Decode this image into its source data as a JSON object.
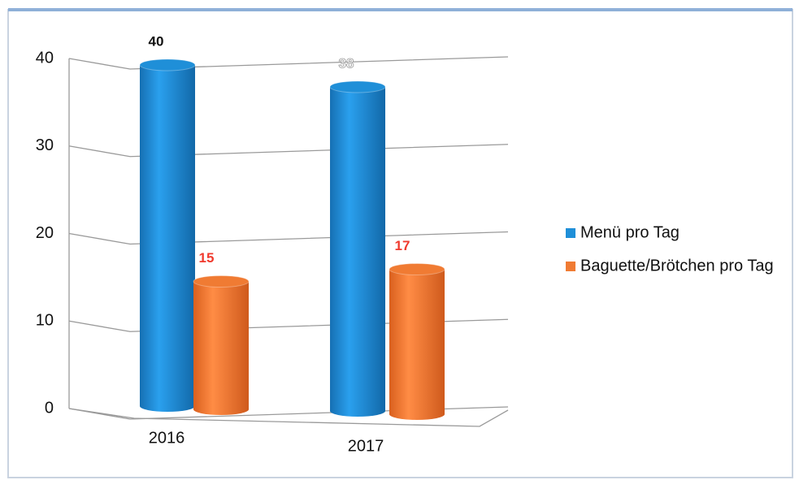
{
  "chart_data": {
    "type": "bar3d",
    "categories": [
      "2016",
      "2017"
    ],
    "series": [
      {
        "name": "Menü pro Tag",
        "color": "#1f8fd8",
        "label_color": "#111111",
        "values": [
          40,
          38
        ]
      },
      {
        "name": "Baguette/Brötchen pro Tag",
        "color": "#f07b33",
        "label_color": "#f03a2e",
        "values": [
          15,
          17
        ]
      }
    ],
    "ylim": [
      0,
      40
    ],
    "yticks": [
      0,
      10,
      20,
      30,
      40
    ],
    "grid": true,
    "legend": "right"
  }
}
